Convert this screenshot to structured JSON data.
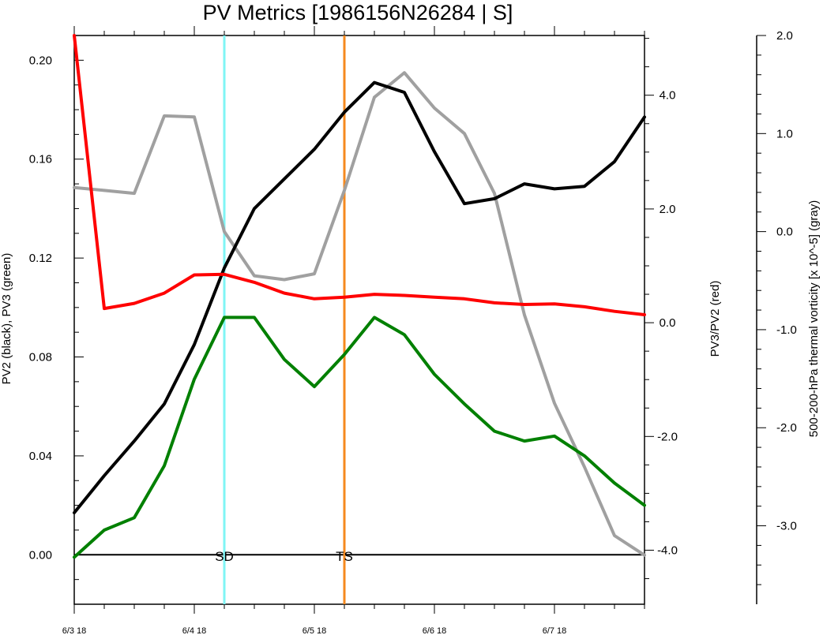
{
  "chart_data": {
    "type": "line",
    "title": "PV Metrics [1986156N26284 | S]",
    "x": [
      "6/3 18",
      "6/4 00",
      "6/4 06",
      "6/4 12",
      "6/4 18",
      "6/5 00",
      "6/5 06",
      "6/5 12",
      "6/5 18",
      "6/6 00",
      "6/6 06",
      "6/6 12",
      "6/6 18",
      "6/7 00",
      "6/7 06",
      "6/7 12",
      "6/7 18",
      "6/8 00",
      "6/8 06",
      "6/8 12"
    ],
    "x_tick_labels": [
      "6/3 18",
      "6/4 18",
      "6/5 18",
      "6/6 18",
      "6/7 18"
    ],
    "left_axis": {
      "label": "PV2 (black), PV3 (green)",
      "ylim": [
        -0.02,
        0.21
      ],
      "ticks": [
        "0.00",
        "0.04",
        "0.08",
        "0.12",
        "0.16",
        "0.20"
      ]
    },
    "red_axis": {
      "label": "PV3/PV2 (red)",
      "ylim": [
        -4.95,
        5.05
      ],
      "ticks": [
        "-4.0",
        "-2.0",
        "0.0",
        "2.0",
        "4.0"
      ]
    },
    "gray_axis": {
      "label": "500-200-hPa thermal vorticity [x 10^-5] (gray)",
      "ylim": [
        -3.8,
        2.0
      ],
      "ticks": [
        "-3.0",
        "-2.0",
        "-1.0",
        "0.0",
        "1.0",
        "2.0"
      ]
    },
    "series": [
      {
        "color": "#000000",
        "axis": "left",
        "values": [
          0.017,
          0.032,
          0.046,
          0.061,
          0.085,
          0.116,
          0.14,
          0.152,
          0.164,
          0.179,
          0.191,
          0.187,
          0.163,
          0.142,
          0.144,
          0.15,
          0.148,
          0.149,
          0.159,
          0.177
        ]
      },
      {
        "color": "#008000",
        "axis": "left",
        "values": [
          -0.001,
          0.01,
          0.015,
          0.036,
          0.071,
          0.096,
          0.096,
          0.079,
          0.068,
          0.081,
          0.096,
          0.089,
          0.073,
          0.061,
          0.05,
          0.046,
          0.048,
          0.04,
          0.029,
          0.02
        ]
      },
      {
        "color": "#ff0000",
        "axis": "red",
        "values": [
          5.05,
          0.25,
          0.34,
          0.52,
          0.84,
          0.85,
          0.71,
          0.52,
          0.42,
          0.45,
          0.5,
          0.48,
          0.45,
          0.42,
          0.35,
          0.32,
          0.33,
          0.28,
          0.2,
          0.14
        ]
      },
      {
        "color": "#a0a0a0",
        "axis": "gray",
        "values": [
          0.45,
          0.42,
          0.39,
          1.18,
          1.17,
          0.0,
          -0.45,
          -0.49,
          -0.43,
          0.42,
          1.37,
          1.62,
          1.26,
          1.0,
          0.39,
          -0.85,
          -1.75,
          -2.4,
          -3.1,
          -3.3
        ]
      }
    ],
    "vertical_markers": [
      {
        "label": "SD",
        "x_index": 5,
        "color": "#7ff5f5"
      },
      {
        "label": "TS",
        "x_index": 9,
        "color": "#f5891e"
      }
    ],
    "zero_line": {
      "axis": "left",
      "value": 0.0,
      "color": "#000000"
    },
    "grid": false
  }
}
